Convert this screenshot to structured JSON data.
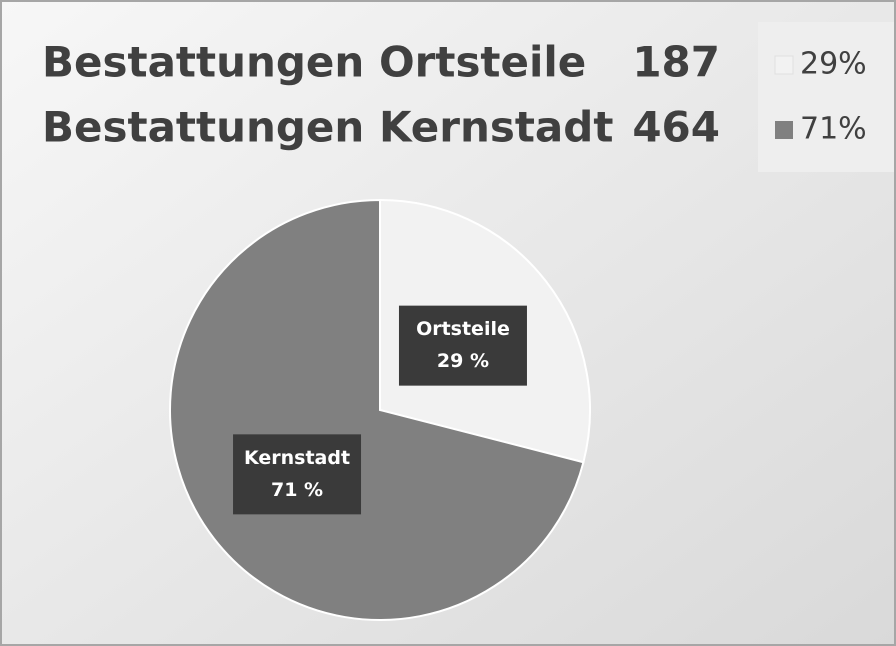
{
  "chart_data": {
    "type": "pie",
    "rows": [
      {
        "label": "Bestattungen Ortsteile",
        "value": 187
      },
      {
        "label": "Bestattungen Kernstadt",
        "value": 464
      }
    ],
    "legend": [
      "29%",
      "71%"
    ],
    "categories": [
      "Ortsteile",
      "Kernstadt"
    ],
    "values": [
      29,
      71
    ],
    "value_labels": [
      "29 %",
      "71 %"
    ],
    "colors": [
      "#f2f2f2",
      "#808080"
    ]
  }
}
